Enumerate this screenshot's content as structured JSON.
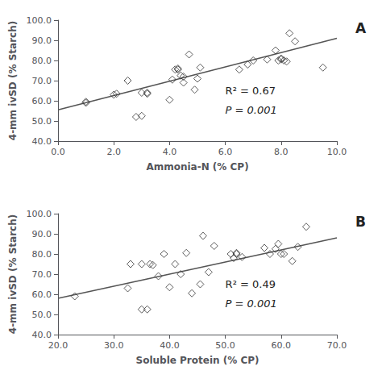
{
  "chart_data": [
    {
      "type": "scatter",
      "title": "A",
      "xlabel": "Ammonia-N (% CP)",
      "ylabel": "4-mm ivSD (% Starch)",
      "xlim": [
        0.0,
        10.0
      ],
      "ylim": [
        40.0,
        100.0
      ],
      "xticks": [
        {
          "value": 0.0,
          "label": "0.0"
        },
        {
          "value": 2.0,
          "label": "2.0"
        },
        {
          "value": 4.0,
          "label": "4.0"
        },
        {
          "value": 6.0,
          "label": "6.0"
        },
        {
          "value": 8.0,
          "label": "8.0"
        },
        {
          "value": 10.0,
          "label": "10.0"
        }
      ],
      "yticks": [
        {
          "value": 40.0,
          "label": "40.0"
        },
        {
          "value": 50.0,
          "label": "50.0"
        },
        {
          "value": 60.0,
          "label": "60.0"
        },
        {
          "value": 70.0,
          "label": "70.0"
        },
        {
          "value": 80.0,
          "label": "80.0"
        },
        {
          "value": 90.0,
          "label": "90.0"
        },
        {
          "value": 100.0,
          "label": "100.0"
        }
      ],
      "grid": false,
      "annotations": [
        "R² = 0.67",
        "P = 0.001"
      ],
      "series": [
        {
          "type": "scatter",
          "marker": "diamond",
          "color": "#333333",
          "x": [
            1.0,
            1.0,
            2.0,
            2.1,
            2.5,
            2.8,
            3.0,
            3.0,
            3.2,
            3.2,
            4.0,
            4.1,
            4.2,
            4.3,
            4.3,
            4.4,
            4.5,
            4.5,
            4.7,
            4.9,
            5.0,
            5.1,
            6.5,
            6.8,
            7.0,
            7.5,
            7.8,
            7.9,
            8.0,
            8.0,
            8.1,
            8.2,
            8.3,
            8.5,
            9.5
          ],
          "values": [
            59.0,
            59.5,
            63.0,
            63.5,
            70.0,
            52.0,
            52.5,
            64.0,
            63.5,
            64.0,
            60.5,
            70.5,
            75.5,
            75.5,
            76.0,
            72.5,
            72.0,
            69.0,
            83.0,
            65.5,
            71.0,
            76.5,
            75.5,
            78.0,
            80.0,
            80.5,
            85.0,
            80.0,
            81.0,
            80.5,
            80.0,
            79.5,
            93.5,
            89.5,
            76.5
          ]
        },
        {
          "type": "line",
          "color": "#555555",
          "x": [
            0.0,
            10.0
          ],
          "values": [
            55.5,
            91.0
          ]
        }
      ]
    },
    {
      "type": "scatter",
      "title": "B",
      "xlabel": "Soluble Protein (% CP)",
      "ylabel": "4-mm ivSD (% Starch)",
      "xlim": [
        20.0,
        70.0
      ],
      "ylim": [
        40.0,
        100.0
      ],
      "xticks": [
        {
          "value": 20.0,
          "label": "20.0"
        },
        {
          "value": 30.0,
          "label": "30.0"
        },
        {
          "value": 40.0,
          "label": "40.0"
        },
        {
          "value": 50.0,
          "label": "50.0"
        },
        {
          "value": 60.0,
          "label": "60.0"
        },
        {
          "value": 70.0,
          "label": "70.0"
        }
      ],
      "yticks": [
        {
          "value": 40.0,
          "label": "40.0"
        },
        {
          "value": 50.0,
          "label": "50.0"
        },
        {
          "value": 60.0,
          "label": "60.0"
        },
        {
          "value": 70.0,
          "label": "70.0"
        },
        {
          "value": 80.0,
          "label": "80.0"
        },
        {
          "value": 90.0,
          "label": "90.0"
        },
        {
          "value": 100.0,
          "label": "100.0"
        }
      ],
      "grid": false,
      "annotations": [
        "R² = 0.49",
        "P = 0.001"
      ],
      "series": [
        {
          "type": "scatter",
          "marker": "diamond",
          "color": "#333333",
          "x": [
            23.0,
            32.5,
            33.0,
            35.0,
            35.0,
            36.0,
            36.5,
            37.0,
            38.0,
            39.0,
            40.0,
            41.0,
            42.0,
            43.0,
            44.0,
            45.5,
            46.0,
            47.0,
            48.0,
            51.0,
            51.5,
            52.0,
            52.0,
            53.0,
            57.0,
            58.0,
            59.0,
            59.5,
            60.0,
            60.5,
            62.0,
            63.0,
            64.5
          ],
          "values": [
            59.0,
            63.0,
            75.0,
            75.0,
            52.5,
            52.5,
            75.0,
            74.5,
            69.0,
            80.0,
            63.5,
            75.0,
            70.0,
            80.5,
            60.5,
            65.0,
            89.0,
            71.0,
            84.0,
            80.0,
            78.0,
            80.0,
            80.5,
            78.5,
            83.0,
            80.0,
            82.5,
            85.0,
            80.0,
            80.0,
            76.5,
            83.5,
            93.5
          ]
        },
        {
          "type": "line",
          "color": "#555555",
          "x": [
            20.0,
            70.0
          ],
          "values": [
            58.0,
            88.0
          ]
        }
      ]
    }
  ]
}
